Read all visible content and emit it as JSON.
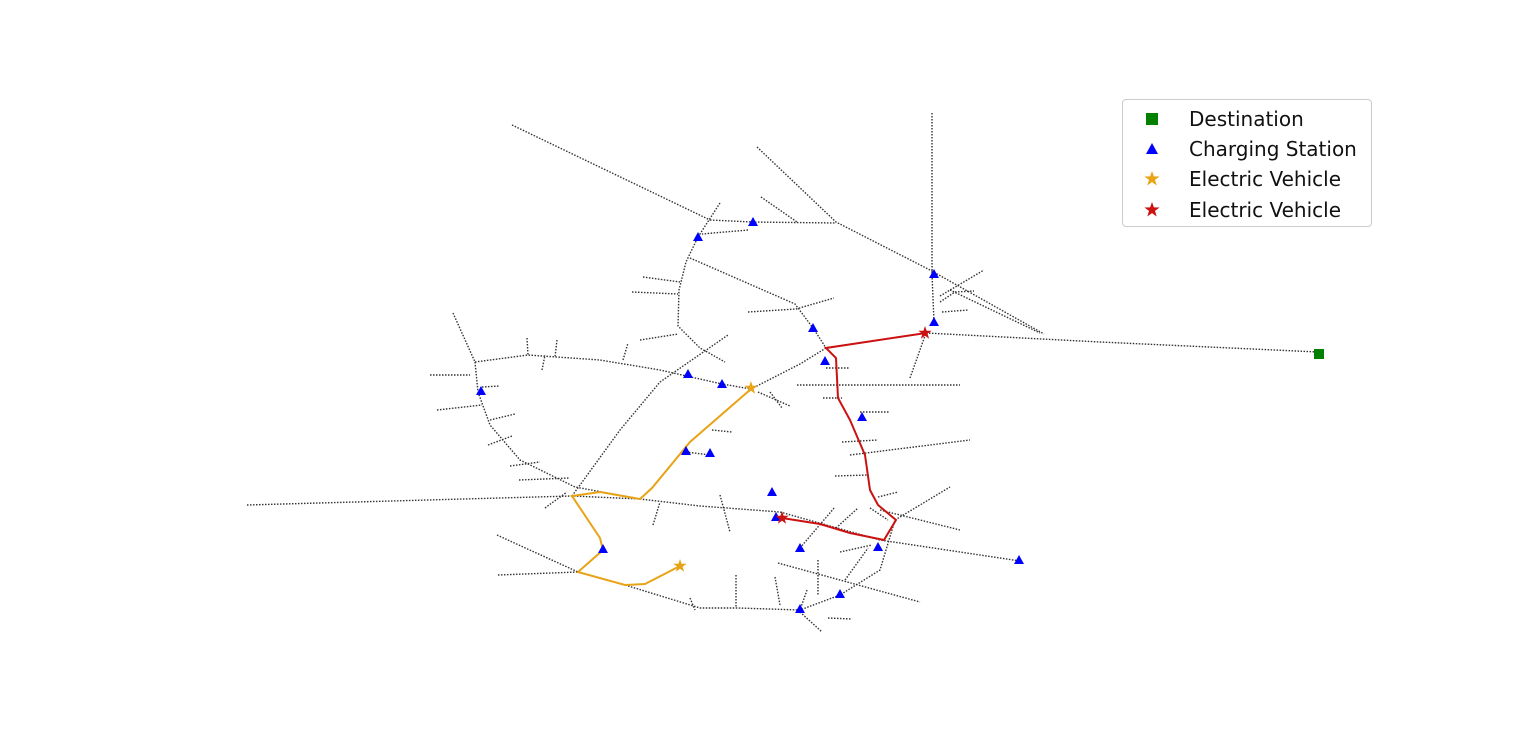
{
  "legend": {
    "items": [
      {
        "label": "Destination",
        "marker": "square",
        "color": "#008000"
      },
      {
        "label": "Charging Station",
        "marker": "triangle",
        "color": "#0000ff"
      },
      {
        "label": "Electric Vehicle",
        "marker": "star",
        "color": "#e8a317"
      },
      {
        "label": "Electric Vehicle",
        "marker": "star",
        "color": "#cc1111"
      }
    ]
  },
  "colors": {
    "road": "#333333",
    "route_ev1": "#e8a317",
    "route_ev2": "#cc1111",
    "destination": "#008000",
    "charging_station": "#0000ff"
  }
}
